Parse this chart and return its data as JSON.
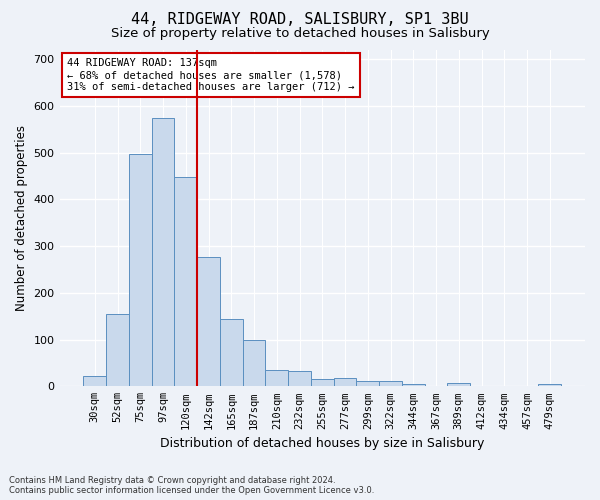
{
  "title": "44, RIDGEWAY ROAD, SALISBURY, SP1 3BU",
  "subtitle": "Size of property relative to detached houses in Salisbury",
  "xlabel": "Distribution of detached houses by size in Salisbury",
  "ylabel": "Number of detached properties",
  "bar_labels": [
    "30sqm",
    "52sqm",
    "75sqm",
    "97sqm",
    "120sqm",
    "142sqm",
    "165sqm",
    "187sqm",
    "210sqm",
    "232sqm",
    "255sqm",
    "277sqm",
    "299sqm",
    "322sqm",
    "344sqm",
    "367sqm",
    "389sqm",
    "412sqm",
    "434sqm",
    "457sqm",
    "479sqm"
  ],
  "bar_values": [
    22,
    155,
    498,
    575,
    448,
    277,
    145,
    99,
    35,
    33,
    16,
    18,
    12,
    11,
    5,
    0,
    8,
    0,
    0,
    0,
    6
  ],
  "bar_color": "#c9d9ec",
  "bar_edge_color": "#5a8fc0",
  "vline_color": "#cc0000",
  "annotation_text": "44 RIDGEWAY ROAD: 137sqm\n← 68% of detached houses are smaller (1,578)\n31% of semi-detached houses are larger (712) →",
  "annotation_box_color": "#ffffff",
  "annotation_box_edge": "#cc0000",
  "ylim": [
    0,
    720
  ],
  "yticks": [
    0,
    100,
    200,
    300,
    400,
    500,
    600,
    700
  ],
  "footer_line1": "Contains HM Land Registry data © Crown copyright and database right 2024.",
  "footer_line2": "Contains public sector information licensed under the Open Government Licence v3.0.",
  "bg_color": "#eef2f8",
  "grid_color": "#ffffff",
  "title_fontsize": 11,
  "subtitle_fontsize": 9.5,
  "tick_fontsize": 7.5,
  "ylabel_fontsize": 8.5,
  "xlabel_fontsize": 9,
  "footer_fontsize": 6,
  "annotation_fontsize": 7.5
}
